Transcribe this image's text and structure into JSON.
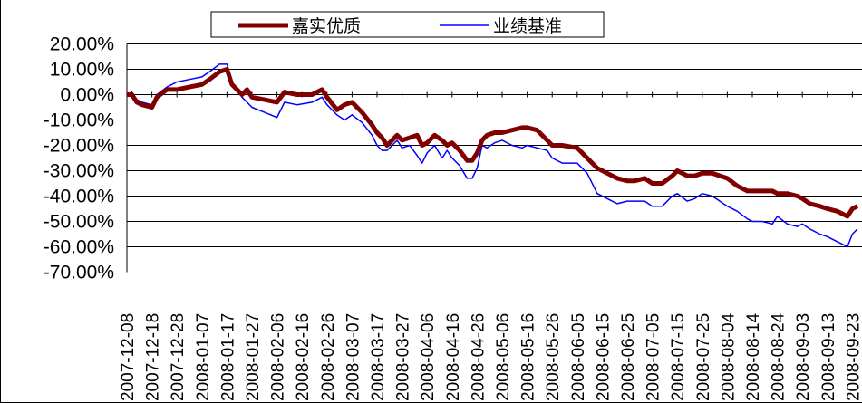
{
  "chart_data": {
    "type": "line",
    "title": "",
    "xlabel": "",
    "ylabel": "",
    "ylim": [
      -0.7,
      0.2
    ],
    "y_ticks": [
      0.2,
      0.1,
      0.0,
      -0.1,
      -0.2,
      -0.3,
      -0.4,
      -0.5,
      -0.6,
      -0.7
    ],
    "y_tick_labels": [
      "20.00%",
      "10.00%",
      "0.00%",
      "-10.00%",
      "-20.00%",
      "-30.00%",
      "-40.00%",
      "-50.00%",
      "-60.00%",
      "-70.00%"
    ],
    "x_tick_labels": [
      "2007-12-08",
      "2007-12-18",
      "2007-12-28",
      "2008-01-07",
      "2008-01-17",
      "2008-01-27",
      "2008-02-06",
      "2008-02-16",
      "2008-02-26",
      "2008-03-07",
      "2008-03-17",
      "2008-03-27",
      "2008-04-06",
      "2008-04-16",
      "2008-04-26",
      "2008-05-06",
      "2008-05-16",
      "2008-05-26",
      "2008-06-05",
      "2008-06-15",
      "2008-06-25",
      "2008-07-05",
      "2008-07-15",
      "2008-07-25",
      "2008-08-04",
      "2008-08-14",
      "2008-08-24",
      "2008-09-03",
      "2008-09-13",
      "2008-09-23"
    ],
    "grid": true,
    "legend_position": "top",
    "series": [
      {
        "name": "嘉实优质",
        "color": "#800000",
        "x": [
          "2007-12-08",
          "2007-12-10",
          "2007-12-12",
          "2007-12-14",
          "2007-12-18",
          "2007-12-20",
          "2007-12-24",
          "2007-12-28",
          "2008-01-02",
          "2008-01-07",
          "2008-01-10",
          "2008-01-14",
          "2008-01-17",
          "2008-01-19",
          "2008-01-23",
          "2008-01-25",
          "2008-01-27",
          "2008-02-01",
          "2008-02-06",
          "2008-02-09",
          "2008-02-14",
          "2008-02-20",
          "2008-02-24",
          "2008-02-26",
          "2008-03-01",
          "2008-03-04",
          "2008-03-07",
          "2008-03-11",
          "2008-03-15",
          "2008-03-17",
          "2008-03-19",
          "2008-03-21",
          "2008-03-23",
          "2008-03-25",
          "2008-03-27",
          "2008-03-30",
          "2008-04-02",
          "2008-04-04",
          "2008-04-06",
          "2008-04-09",
          "2008-04-12",
          "2008-04-14",
          "2008-04-16",
          "2008-04-19",
          "2008-04-22",
          "2008-04-24",
          "2008-04-26",
          "2008-04-28",
          "2008-04-30",
          "2008-05-03",
          "2008-05-06",
          "2008-05-10",
          "2008-05-14",
          "2008-05-16",
          "2008-05-20",
          "2008-05-24",
          "2008-05-26",
          "2008-05-30",
          "2008-06-05",
          "2008-06-09",
          "2008-06-13",
          "2008-06-17",
          "2008-06-21",
          "2008-06-25",
          "2008-06-28",
          "2008-07-02",
          "2008-07-05",
          "2008-07-09",
          "2008-07-13",
          "2008-07-15",
          "2008-07-19",
          "2008-07-22",
          "2008-07-25",
          "2008-07-29",
          "2008-08-01",
          "2008-08-04",
          "2008-08-08",
          "2008-08-12",
          "2008-08-14",
          "2008-08-18",
          "2008-08-22",
          "2008-08-24",
          "2008-08-28",
          "2008-09-01",
          "2008-09-03",
          "2008-09-06",
          "2008-09-10",
          "2008-09-13",
          "2008-09-17",
          "2008-09-19",
          "2008-09-21",
          "2008-09-23",
          "2008-09-25"
        ],
        "values": [
          0.0,
          0.0,
          -0.03,
          -0.04,
          -0.05,
          -0.01,
          0.02,
          0.02,
          0.03,
          0.04,
          0.06,
          0.09,
          0.1,
          0.04,
          0.0,
          0.02,
          -0.01,
          -0.02,
          -0.03,
          0.01,
          0.0,
          0.0,
          0.02,
          -0.01,
          -0.06,
          -0.04,
          -0.03,
          -0.07,
          -0.12,
          -0.15,
          -0.17,
          -0.2,
          -0.18,
          -0.16,
          -0.18,
          -0.17,
          -0.16,
          -0.2,
          -0.19,
          -0.16,
          -0.18,
          -0.2,
          -0.19,
          -0.22,
          -0.26,
          -0.26,
          -0.23,
          -0.18,
          -0.16,
          -0.15,
          -0.15,
          -0.14,
          -0.13,
          -0.13,
          -0.14,
          -0.18,
          -0.2,
          -0.2,
          -0.21,
          -0.25,
          -0.29,
          -0.31,
          -0.33,
          -0.34,
          -0.34,
          -0.33,
          -0.35,
          -0.35,
          -0.32,
          -0.3,
          -0.32,
          -0.32,
          -0.31,
          -0.31,
          -0.32,
          -0.33,
          -0.36,
          -0.38,
          -0.38,
          -0.38,
          -0.38,
          -0.39,
          -0.39,
          -0.4,
          -0.41,
          -0.43,
          -0.44,
          -0.45,
          -0.46,
          -0.47,
          -0.48,
          -0.45,
          -0.44
        ]
      },
      {
        "name": "业绩基准",
        "color": "#0000ff",
        "x": [
          "2007-12-08",
          "2007-12-10",
          "2007-12-12",
          "2007-12-14",
          "2007-12-18",
          "2007-12-20",
          "2007-12-24",
          "2007-12-28",
          "2008-01-02",
          "2008-01-07",
          "2008-01-10",
          "2008-01-14",
          "2008-01-17",
          "2008-01-19",
          "2008-01-23",
          "2008-01-25",
          "2008-01-27",
          "2008-02-01",
          "2008-02-06",
          "2008-02-09",
          "2008-02-14",
          "2008-02-20",
          "2008-02-24",
          "2008-02-26",
          "2008-03-01",
          "2008-03-04",
          "2008-03-07",
          "2008-03-11",
          "2008-03-15",
          "2008-03-17",
          "2008-03-19",
          "2008-03-21",
          "2008-03-23",
          "2008-03-25",
          "2008-03-27",
          "2008-03-30",
          "2008-04-02",
          "2008-04-04",
          "2008-04-06",
          "2008-04-09",
          "2008-04-12",
          "2008-04-14",
          "2008-04-16",
          "2008-04-19",
          "2008-04-22",
          "2008-04-24",
          "2008-04-26",
          "2008-04-28",
          "2008-04-30",
          "2008-05-03",
          "2008-05-06",
          "2008-05-10",
          "2008-05-14",
          "2008-05-16",
          "2008-05-20",
          "2008-05-24",
          "2008-05-26",
          "2008-05-30",
          "2008-06-05",
          "2008-06-09",
          "2008-06-13",
          "2008-06-17",
          "2008-06-21",
          "2008-06-25",
          "2008-06-28",
          "2008-07-02",
          "2008-07-05",
          "2008-07-09",
          "2008-07-13",
          "2008-07-15",
          "2008-07-19",
          "2008-07-22",
          "2008-07-25",
          "2008-07-29",
          "2008-08-01",
          "2008-08-04",
          "2008-08-08",
          "2008-08-12",
          "2008-08-14",
          "2008-08-18",
          "2008-08-22",
          "2008-08-24",
          "2008-08-28",
          "2008-09-01",
          "2008-09-03",
          "2008-09-06",
          "2008-09-10",
          "2008-09-13",
          "2008-09-17",
          "2008-09-19",
          "2008-09-21",
          "2008-09-23",
          "2008-09-25"
        ],
        "values": [
          0.0,
          0.01,
          -0.02,
          -0.03,
          -0.04,
          0.0,
          0.03,
          0.05,
          0.06,
          0.07,
          0.09,
          0.12,
          0.12,
          0.05,
          -0.01,
          -0.03,
          -0.05,
          -0.07,
          -0.09,
          -0.03,
          -0.04,
          -0.03,
          -0.01,
          -0.04,
          -0.08,
          -0.1,
          -0.08,
          -0.11,
          -0.16,
          -0.2,
          -0.22,
          -0.22,
          -0.2,
          -0.18,
          -0.21,
          -0.2,
          -0.24,
          -0.27,
          -0.23,
          -0.2,
          -0.25,
          -0.22,
          -0.25,
          -0.28,
          -0.33,
          -0.33,
          -0.29,
          -0.2,
          -0.21,
          -0.19,
          -0.18,
          -0.2,
          -0.21,
          -0.2,
          -0.21,
          -0.22,
          -0.25,
          -0.27,
          -0.27,
          -0.31,
          -0.39,
          -0.41,
          -0.43,
          -0.42,
          -0.42,
          -0.42,
          -0.44,
          -0.44,
          -0.4,
          -0.39,
          -0.42,
          -0.41,
          -0.39,
          -0.4,
          -0.42,
          -0.44,
          -0.46,
          -0.49,
          -0.5,
          -0.5,
          -0.51,
          -0.48,
          -0.51,
          -0.52,
          -0.51,
          -0.53,
          -0.55,
          -0.56,
          -0.58,
          -0.59,
          -0.6,
          -0.55,
          -0.53
        ]
      }
    ]
  }
}
